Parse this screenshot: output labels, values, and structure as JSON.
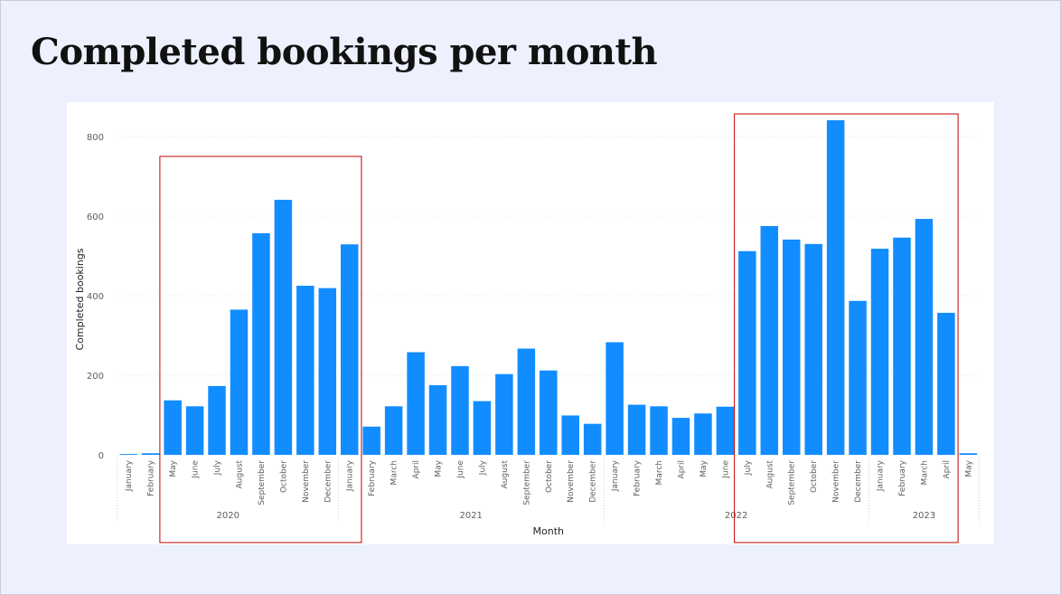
{
  "page": {
    "title": "Completed bookings per month"
  },
  "colors": {
    "bar": "#118dff",
    "highlight": "#c00000",
    "grid": "#e3e3e3",
    "tick_text": "#605e5c",
    "axis_title": "#252423",
    "background": "#ecf1fd"
  },
  "chart_data": {
    "type": "bar",
    "title": "",
    "xlabel": "Month",
    "ylabel": "Completed bookings",
    "ylim": [
      0,
      800
    ],
    "yticks": [
      0,
      200,
      400,
      600,
      800
    ],
    "grid": true,
    "legend": "none",
    "categories": [
      {
        "month": "January",
        "year": "2020"
      },
      {
        "month": "February",
        "year": "2020"
      },
      {
        "month": "May",
        "year": "2020"
      },
      {
        "month": "June",
        "year": "2020"
      },
      {
        "month": "July",
        "year": "2020"
      },
      {
        "month": "August",
        "year": "2020"
      },
      {
        "month": "September",
        "year": "2020"
      },
      {
        "month": "October",
        "year": "2020"
      },
      {
        "month": "November",
        "year": "2020"
      },
      {
        "month": "December",
        "year": "2020"
      },
      {
        "month": "January",
        "year": "2021"
      },
      {
        "month": "February",
        "year": "2021"
      },
      {
        "month": "March",
        "year": "2021"
      },
      {
        "month": "April",
        "year": "2021"
      },
      {
        "month": "May",
        "year": "2021"
      },
      {
        "month": "June",
        "year": "2021"
      },
      {
        "month": "July",
        "year": "2021"
      },
      {
        "month": "August",
        "year": "2021"
      },
      {
        "month": "September",
        "year": "2021"
      },
      {
        "month": "October",
        "year": "2021"
      },
      {
        "month": "November",
        "year": "2021"
      },
      {
        "month": "December",
        "year": "2021"
      },
      {
        "month": "January",
        "year": "2022"
      },
      {
        "month": "February",
        "year": "2022"
      },
      {
        "month": "March",
        "year": "2022"
      },
      {
        "month": "April",
        "year": "2022"
      },
      {
        "month": "May",
        "year": "2022"
      },
      {
        "month": "June",
        "year": "2022"
      },
      {
        "month": "July",
        "year": "2022"
      },
      {
        "month": "August",
        "year": "2022"
      },
      {
        "month": "September",
        "year": "2022"
      },
      {
        "month": "October",
        "year": "2022"
      },
      {
        "month": "November",
        "year": "2022"
      },
      {
        "month": "December",
        "year": "2022"
      },
      {
        "month": "January",
        "year": "2023"
      },
      {
        "month": "February",
        "year": "2023"
      },
      {
        "month": "March",
        "year": "2023"
      },
      {
        "month": "April",
        "year": "2023"
      },
      {
        "month": "May",
        "year": "2023"
      }
    ],
    "values": [
      2,
      4,
      137,
      122,
      173,
      365,
      557,
      641,
      425,
      419,
      529,
      71,
      122,
      258,
      175,
      223,
      135,
      203,
      267,
      212,
      99,
      78,
      283,
      126,
      122,
      93,
      104,
      121,
      512,
      575,
      541,
      530,
      841,
      387,
      518,
      546,
      593,
      357,
      4
    ],
    "year_groups": [
      {
        "label": "2020",
        "start": 0,
        "end": 9
      },
      {
        "label": "2021",
        "start": 10,
        "end": 21
      },
      {
        "label": "2022",
        "start": 22,
        "end": 33
      },
      {
        "label": "2023",
        "start": 34,
        "end": 38
      }
    ],
    "highlight_ranges": [
      {
        "start": 2,
        "end": 10
      },
      {
        "start": 28,
        "end": 37
      }
    ]
  }
}
